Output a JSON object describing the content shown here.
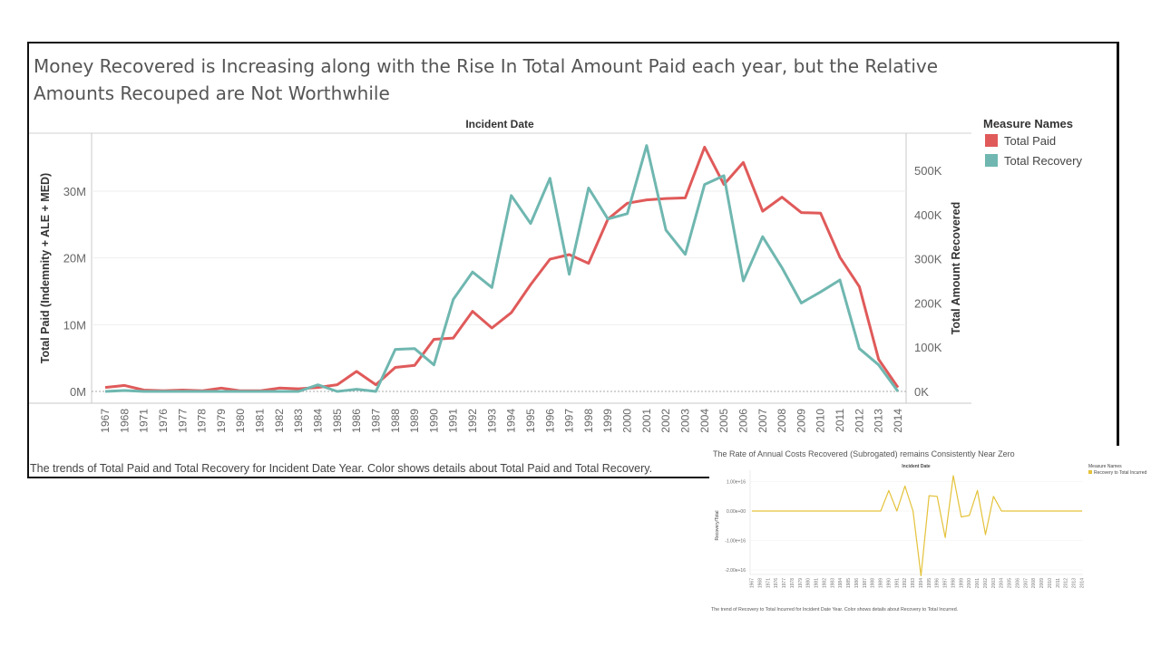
{
  "main": {
    "title": "Money Recovered is Increasing along with the Rise In Total Amount Paid each year, but the Relative Amounts Recouped are Not Worthwhile",
    "caption": "The trends of Total Paid and Total Recovery for Incident Date Year.  Color shows details about Total Paid and Total Recovery."
  },
  "second": {
    "title": "The Rate of Annual Costs Recovered (Subrogated) remains Consistently Near Zero",
    "caption": "The trend of Recovery to Total Incurred for Incident Date Year.  Color shows details about Recovery to Total Incurred."
  },
  "chart_data": [
    {
      "type": "line",
      "title": "Money Recovered is Increasing along with the Rise In Total Amount Paid each year, but the Relative Amounts Recouped are Not Worthwhile",
      "header": "Incident Date",
      "ylabel": "Total Paid (Indemnity + ALE + MED)",
      "y2label": "Total Amount Recovered",
      "legend_title": "Measure Names",
      "legend_position": "right",
      "ylim": [
        0,
        30000000
      ],
      "y2lim": [
        0,
        500000
      ],
      "yticks": [
        "0M",
        "10M",
        "20M",
        "30M"
      ],
      "y2ticks": [
        "0K",
        "100K",
        "200K",
        "300K",
        "400K",
        "500K"
      ],
      "categories": [
        "1967",
        "1968",
        "1971",
        "1976",
        "1977",
        "1978",
        "1979",
        "1980",
        "1981",
        "1982",
        "1983",
        "1984",
        "1985",
        "1986",
        "1987",
        "1988",
        "1989",
        "1990",
        "1991",
        "1992",
        "1993",
        "1994",
        "1995",
        "1996",
        "1997",
        "1998",
        "1999",
        "2000",
        "2001",
        "2002",
        "2003",
        "2004",
        "2005",
        "2006",
        "2007",
        "2008",
        "2009",
        "2010",
        "2011",
        "2012",
        "2013",
        "2014"
      ],
      "series": [
        {
          "name": "Total Paid",
          "axis": "left",
          "color": "#e05a5a",
          "values": [
            600000,
            900000,
            200000,
            100000,
            200000,
            100000,
            500000,
            100000,
            100000,
            500000,
            400000,
            600000,
            1000000,
            3000000,
            1000000,
            3600000,
            3900000,
            7800000,
            8000000,
            12000000,
            9500000,
            11800000,
            16000000,
            19800000,
            20500000,
            19200000,
            25800000,
            28200000,
            28700000,
            28900000,
            29000000,
            36600000,
            31000000,
            34300000,
            27000000,
            29100000,
            26800000,
            26700000,
            20100000,
            15700000,
            4800000,
            600000
          ]
        },
        {
          "name": "Total Recovery",
          "axis": "right",
          "color": "#6fb7b0",
          "values": [
            0,
            2000,
            0,
            0,
            0,
            0,
            0,
            0,
            0,
            0,
            0,
            15000,
            0,
            5000,
            0,
            95000,
            97000,
            60000,
            208000,
            270000,
            235000,
            443000,
            380000,
            482000,
            265000,
            460000,
            390000,
            402000,
            556000,
            365000,
            310000,
            468000,
            488000,
            250000,
            350000,
            280000,
            200000,
            225000,
            252000,
            97000,
            60000,
            0
          ]
        }
      ]
    },
    {
      "type": "line",
      "title": "The Rate of Annual Costs Recovered (Subrogated) remains Consistently Near Zero",
      "header": "Incident Date",
      "ylabel": "Recovery/Total",
      "legend_title": "Measure Names",
      "legend_position": "top-right",
      "ylim": [
        -2.2e+16,
        1.2e+16
      ],
      "yticks": [
        "1.00e+16",
        "0.00e+00",
        "-1.00e+16",
        "-2.00e+16"
      ],
      "categories": [
        "1967",
        "1968",
        "1971",
        "1976",
        "1977",
        "1978",
        "1979",
        "1980",
        "1981",
        "1982",
        "1983",
        "1984",
        "1985",
        "1986",
        "1987",
        "1988",
        "1989",
        "1990",
        "1991",
        "1992",
        "1993",
        "1994",
        "1995",
        "1996",
        "1997",
        "1998",
        "1999",
        "2000",
        "2001",
        "2002",
        "2003",
        "2004",
        "2005",
        "2006",
        "2007",
        "2008",
        "2009",
        "2010",
        "2011",
        "2012",
        "2013",
        "2014"
      ],
      "series": [
        {
          "name": "Recovery to Total Incurred",
          "color": "#e4c23a",
          "values": [
            0,
            0,
            0,
            0,
            0,
            0,
            0,
            0,
            0,
            0,
            0,
            0,
            0,
            0,
            0,
            0,
            0,
            7000000000000000.0,
            0,
            8500000000000000.0,
            0,
            -2.2e+16,
            5200000000000000.0,
            5000000000000000.0,
            -9000000000000000.0,
            1.2e+16,
            -2000000000000000.0,
            -1500000000000000.0,
            7000000000000000.0,
            -8000000000000000.0,
            5000000000000000.0,
            0,
            0,
            0,
            0,
            0,
            0,
            0,
            0,
            0,
            0,
            0
          ]
        }
      ]
    }
  ]
}
